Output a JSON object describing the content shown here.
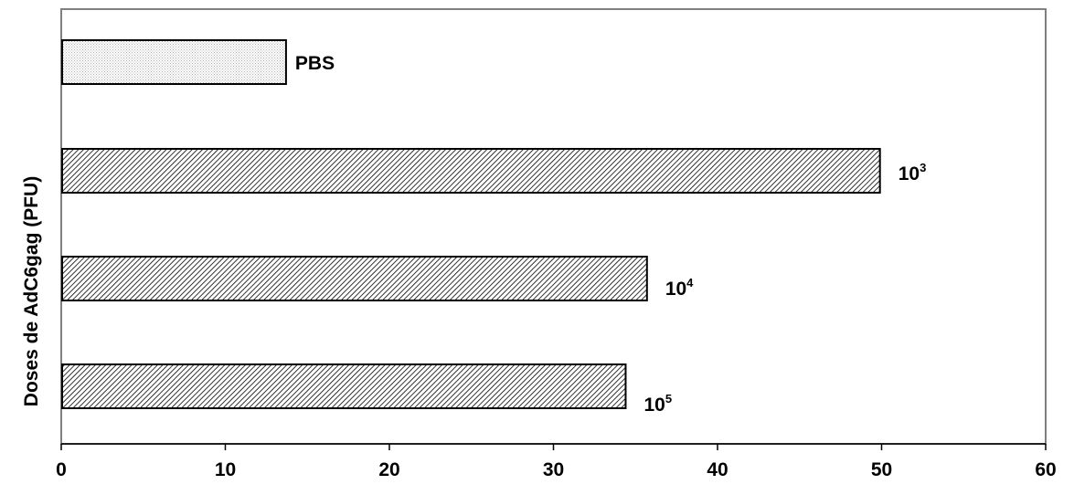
{
  "chart_data": {
    "type": "bar",
    "orientation": "horizontal",
    "title": "",
    "xlabel": "",
    "ylabel": "Doses de AdC6gag (PFU)",
    "xlim": [
      0,
      60
    ],
    "x_ticks": [
      "0",
      "10",
      "20",
      "30",
      "40",
      "50",
      "60"
    ],
    "grid": false,
    "legend": "none",
    "categories": [
      "PBS",
      "10^3",
      "10^4",
      "10^5"
    ],
    "labels": [
      {
        "base": "PBS",
        "sup": ""
      },
      {
        "base": "10",
        "sup": "3"
      },
      {
        "base": "10",
        "sup": "4"
      },
      {
        "base": "10",
        "sup": "5"
      }
    ],
    "values": [
      13.7,
      49.9,
      35.7,
      34.4
    ],
    "fills": [
      "dotted-light",
      "hatched",
      "hatched",
      "hatched"
    ],
    "colors": {
      "border": "#808080",
      "bar_stroke": "#000000",
      "hatch": "#000000",
      "dots": "#b0b0b0"
    }
  }
}
